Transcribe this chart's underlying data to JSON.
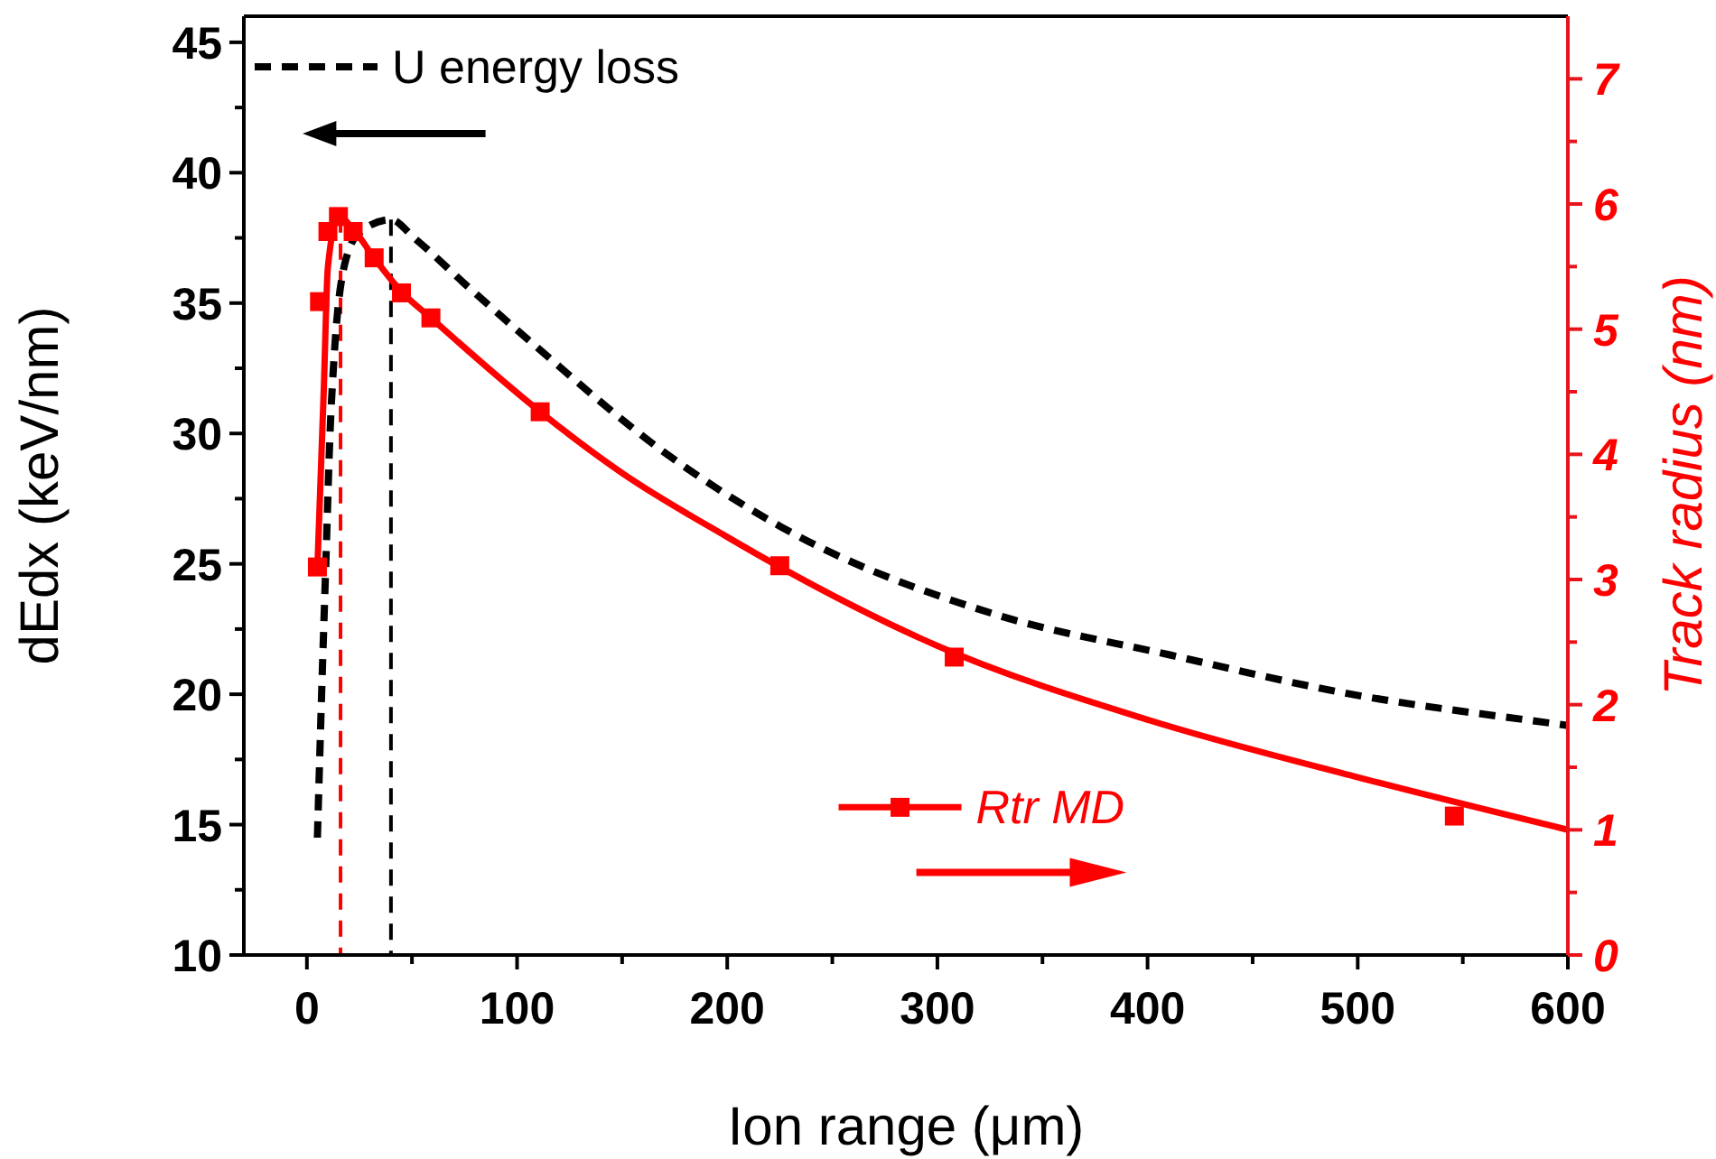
{
  "chart_data": {
    "type": "line",
    "xlabel": "Ion range (μm)",
    "ylabel": "dEdx (keV/nm)",
    "y2label": "Track radius (nm)",
    "xlim": [
      -30,
      600
    ],
    "xticks": [
      0,
      {
        "value": 50,
        "label": null
      },
      100,
      {
        "value": 150,
        "label": null
      },
      200,
      {
        "value": 250,
        "label": null
      },
      300,
      {
        "value": 350,
        "label": null
      },
      400,
      {
        "value": 450,
        "label": null
      },
      500,
      {
        "value": 550,
        "label": null
      },
      600
    ],
    "ylim": [
      10,
      46
    ],
    "yticks": [
      10,
      {
        "value": 12.5,
        "label": null
      },
      15,
      {
        "value": 17.5,
        "label": null
      },
      20,
      {
        "value": 22.5,
        "label": null
      },
      25,
      {
        "value": 27.5,
        "label": null
      },
      30,
      {
        "value": 32.5,
        "label": null
      },
      35,
      {
        "value": 37.5,
        "label": null
      },
      40,
      {
        "value": 42.5,
        "label": null
      },
      45
    ],
    "y2lim": [
      0,
      7.5
    ],
    "y2ticks": [
      0,
      {
        "value": 0.5,
        "label": null
      },
      1,
      {
        "value": 1.5,
        "label": null
      },
      2,
      {
        "value": 2.5,
        "label": null
      },
      3,
      {
        "value": 3.5,
        "label": null
      },
      4,
      {
        "value": 4.5,
        "label": null
      },
      5,
      {
        "value": 5.5,
        "label": null
      },
      6,
      {
        "value": 6.5,
        "label": null
      },
      7
    ],
    "legend": "top left",
    "grid": false,
    "series": [
      {
        "name": "U energy loss",
        "color": "#000000",
        "line_style": "dashed",
        "marker": "none",
        "x": [
          5,
          7,
          9,
          11,
          13,
          18,
          25,
          40,
          51,
          77,
          111,
          168,
          226,
          326,
          411,
          497,
          591,
          600
        ],
        "values": [
          14.5,
          20,
          25,
          30,
          33,
          36.5,
          37.7,
          38.2,
          37.5,
          35.6,
          33.2,
          29.4,
          26.4,
          23.1,
          21.5,
          20,
          18.9,
          18.8
        ]
      },
      {
        "color": "#ff0000",
        "line_style": "solid",
        "marker": "none",
        "axis": "y2",
        "x": [
          5,
          8,
          10,
          15,
          22,
          32,
          45,
          59,
          111,
          150,
          200,
          225,
          300,
          400,
          500,
          600
        ],
        "values": [
          3.1,
          4.5,
          5.5,
          5.9,
          5.8,
          5.57,
          5.3,
          5.09,
          4.34,
          3.85,
          3.34,
          3.1,
          2.47,
          1.88,
          1.42,
          1.0
        ]
      },
      {
        "name": "Rtr MD",
        "type": "scatter",
        "color": "#ff0000",
        "line_style": "solid",
        "marker": "square",
        "axis": "y2",
        "x": [
          5,
          6,
          10,
          15,
          22,
          32,
          45,
          59,
          111,
          225,
          308,
          546
        ],
        "values": [
          3.1,
          5.22,
          5.78,
          5.9,
          5.78,
          5.57,
          5.29,
          5.09,
          4.34,
          3.11,
          2.38,
          1.11
        ]
      }
    ],
    "ref_lines": [
      {
        "axis": "x",
        "value": 16,
        "color": "#ff0000",
        "line_style": "dashed"
      },
      {
        "axis": "x",
        "value": 40,
        "color": "#000000",
        "line_style": "dashed"
      }
    ]
  }
}
